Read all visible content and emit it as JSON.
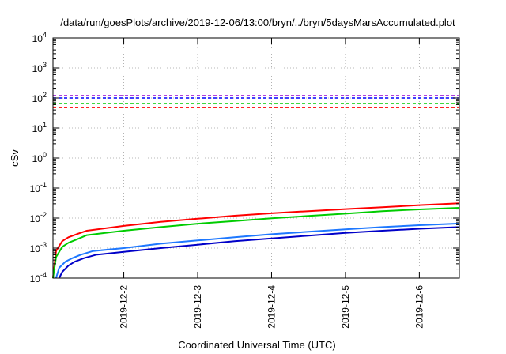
{
  "chart_data": {
    "type": "line",
    "title": "/data/run/goesPlots/archive/2019-12-06/13:00/bryn/../bryn/5daysMarsAccumulated.plot",
    "xlabel": "Coordinated Universal Time (UTC)",
    "ylabel": "cSv",
    "yscale": "log",
    "ylim": [
      0.0001,
      10000
    ],
    "xlim": [
      "2019-12-01T01:00",
      "2019-12-06T13:00"
    ],
    "grid": true,
    "y_ticks": [
      {
        "base": "10",
        "exp": "-4"
      },
      {
        "base": "10",
        "exp": "-3"
      },
      {
        "base": "10",
        "exp": "-2"
      },
      {
        "base": "10",
        "exp": "-1"
      },
      {
        "base": "10",
        "exp": "0"
      },
      {
        "base": "10",
        "exp": "1"
      },
      {
        "base": "10",
        "exp": "2"
      },
      {
        "base": "10",
        "exp": "3"
      },
      {
        "base": "10",
        "exp": "4"
      }
    ],
    "x_ticks": [
      "2019-12-2",
      "2019-12-3",
      "2019-12-4",
      "2019-12-5",
      "2019-12-6"
    ],
    "thresholds": [
      {
        "color": "#9400d3",
        "value": 120
      },
      {
        "color": "#0000ff",
        "value": 100
      },
      {
        "color": "#00cc00",
        "value": 65
      },
      {
        "color": "#ff0000",
        "value": 48
      }
    ],
    "series": [
      {
        "color": "#ff0000",
        "x": [
          "2019-12-01T01:00",
          "2019-12-01T02:00",
          "2019-12-01T04:00",
          "2019-12-01T06:00",
          "2019-12-01T09:00",
          "2019-12-01T12:00",
          "2019-12-02T00:00",
          "2019-12-02T12:00",
          "2019-12-03T00:00",
          "2019-12-03T12:00",
          "2019-12-04T00:00",
          "2019-12-04T12:00",
          "2019-12-05T00:00",
          "2019-12-05T12:00",
          "2019-12-06T00:00",
          "2019-12-06T13:00"
        ],
        "y": [
          0.0001,
          0.0008,
          0.0017,
          0.0023,
          0.003,
          0.0038,
          0.0055,
          0.0075,
          0.0095,
          0.012,
          0.0145,
          0.017,
          0.02,
          0.023,
          0.027,
          0.031
        ]
      },
      {
        "color": "#00cc00",
        "x": [
          "2019-12-01T01:00",
          "2019-12-01T02:00",
          "2019-12-01T04:00",
          "2019-12-01T06:00",
          "2019-12-01T09:00",
          "2019-12-01T12:00",
          "2019-12-02T00:00",
          "2019-12-02T12:00",
          "2019-12-03T00:00",
          "2019-12-03T12:00",
          "2019-12-04T00:00",
          "2019-12-04T12:00",
          "2019-12-05T00:00",
          "2019-12-05T12:00",
          "2019-12-06T00:00",
          "2019-12-06T13:00"
        ],
        "y": [
          0.0001,
          0.0005,
          0.0011,
          0.0015,
          0.002,
          0.0027,
          0.0038,
          0.005,
          0.0065,
          0.008,
          0.0098,
          0.0118,
          0.014,
          0.017,
          0.0195,
          0.022
        ]
      },
      {
        "color": "#1e78ff",
        "x": [
          "2019-12-01T02:00",
          "2019-12-01T03:00",
          "2019-12-01T05:00",
          "2019-12-01T07:00",
          "2019-12-01T10:00",
          "2019-12-01T14:00",
          "2019-12-02T00:00",
          "2019-12-02T12:00",
          "2019-12-03T00:00",
          "2019-12-03T12:00",
          "2019-12-04T00:00",
          "2019-12-04T12:00",
          "2019-12-05T00:00",
          "2019-12-05T12:00",
          "2019-12-06T00:00",
          "2019-12-06T13:00"
        ],
        "y": [
          0.0001,
          0.00022,
          0.00035,
          0.00045,
          0.0006,
          0.0008,
          0.001,
          0.0014,
          0.0018,
          0.0023,
          0.0029,
          0.0035,
          0.0042,
          0.005,
          0.0058,
          0.0066
        ]
      },
      {
        "color": "#0000c8",
        "x": [
          "2019-12-01T03:00",
          "2019-12-01T04:00",
          "2019-12-01T06:00",
          "2019-12-01T08:00",
          "2019-12-01T11:00",
          "2019-12-01T15:00",
          "2019-12-02T00:00",
          "2019-12-02T12:00",
          "2019-12-03T00:00",
          "2019-12-03T12:00",
          "2019-12-04T00:00",
          "2019-12-04T12:00",
          "2019-12-05T00:00",
          "2019-12-05T12:00",
          "2019-12-06T00:00",
          "2019-12-06T13:00"
        ],
        "y": [
          0.0001,
          0.00016,
          0.00026,
          0.00035,
          0.00046,
          0.0006,
          0.00075,
          0.001,
          0.0013,
          0.0017,
          0.0021,
          0.0026,
          0.0032,
          0.0038,
          0.0044,
          0.005
        ]
      }
    ]
  }
}
